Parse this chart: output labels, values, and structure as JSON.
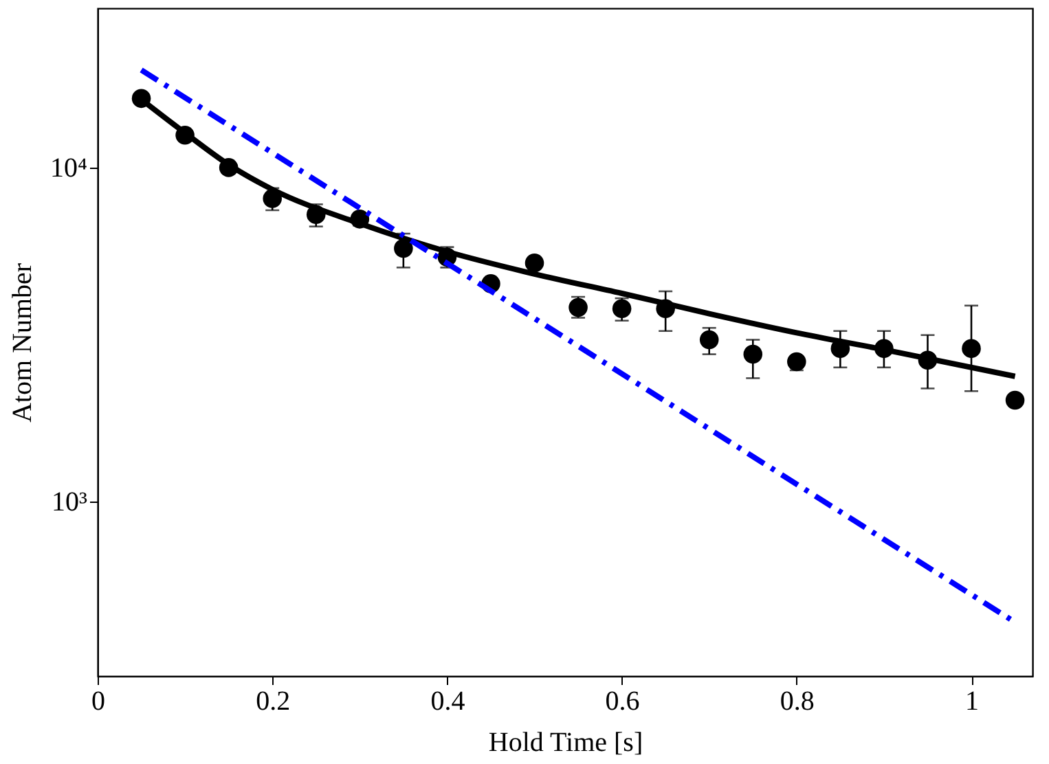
{
  "chart_data": {
    "type": "scatter",
    "xlabel": "Hold Time [s]",
    "ylabel": "Atom Number",
    "log": "y",
    "xlim": [
      0,
      1.07
    ],
    "xticks": [
      0,
      0.2,
      0.4,
      0.6,
      0.8,
      1
    ],
    "ylim": [
      300,
      30000
    ],
    "yticks": [
      {
        "value": 1000,
        "label": "10³"
      },
      {
        "value": 10000,
        "label": "10⁴"
      }
    ],
    "grid": false,
    "x": [
      0.05,
      0.1,
      0.15,
      0.2,
      0.25,
      0.3,
      0.35,
      0.4,
      0.45,
      0.5,
      0.55,
      0.6,
      0.65,
      0.7,
      0.75,
      0.8,
      0.85,
      0.9,
      0.95,
      1.0,
      1.05
    ],
    "series": [
      {
        "color": "#000000",
        "marker": "circle",
        "values": [
          16100,
          12500,
          10000,
          8080,
          7230,
          7010,
          5730,
          5390,
          4490,
          5180,
          3810,
          3780,
          3780,
          3050,
          2760,
          2620,
          2870,
          2870,
          2650,
          2870,
          2010
        ],
        "errors": [
          null,
          null,
          null,
          [
            7450,
            8680
          ],
          [
            6660,
            7760
          ],
          [
            6700,
            7300
          ],
          [
            5020,
            6340
          ],
          [
            5020,
            5780
          ],
          null,
          null,
          [
            3550,
            4100
          ],
          [
            3480,
            4060
          ],
          [
            3240,
            4260
          ],
          [
            2760,
            3310
          ],
          [
            2340,
            3050
          ],
          [
            2470,
            2720
          ],
          [
            2520,
            3240
          ],
          [
            2520,
            3240
          ],
          [
            2180,
            3150
          ],
          [
            2140,
            3860
          ],
          null
        ]
      },
      {
        "type": "line",
        "color": "#000000",
        "line_style": "solid",
        "x": [
          0.05,
          0.1,
          0.15,
          0.2,
          0.3,
          0.4,
          0.5,
          0.6,
          0.7,
          0.8,
          0.9,
          1.05
        ],
        "values": [
          16000,
          12700,
          10200,
          8600,
          6800,
          5600,
          4800,
          4200,
          3650,
          3200,
          2850,
          2370
        ]
      },
      {
        "type": "line",
        "color": "#0000ff",
        "line_style": "dashed",
        "x": [
          0.05,
          1.05
        ],
        "values": [
          19600,
          435
        ]
      }
    ]
  }
}
